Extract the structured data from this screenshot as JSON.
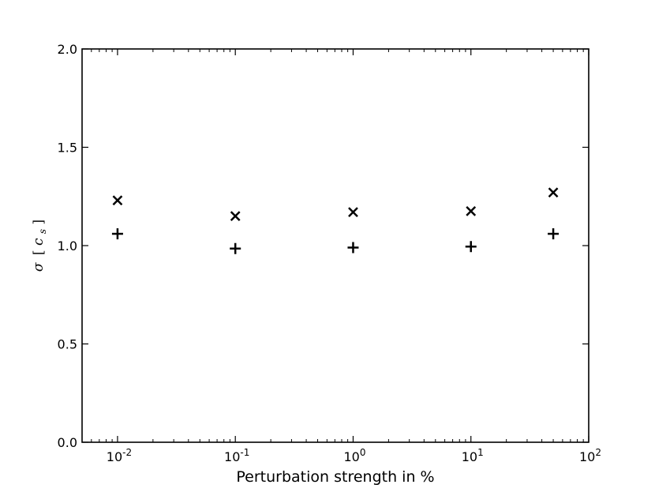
{
  "chart_data": {
    "type": "scatter",
    "title": "",
    "xlabel": "Perturbation strength in %",
    "ylabel": "σ [c_s]",
    "ylabel_parts": {
      "symbol": "σ",
      "open": "[",
      "unit": "c",
      "sub": "s",
      "close": "]"
    },
    "x_scale": "log",
    "xlim": [
      0.005,
      100
    ],
    "ylim": [
      0.0,
      2.0
    ],
    "x_ticks": [
      {
        "value": 0.01,
        "base": "10",
        "exp": "-2"
      },
      {
        "value": 0.1,
        "base": "10",
        "exp": "-1"
      },
      {
        "value": 1,
        "base": "10",
        "exp": "0"
      },
      {
        "value": 10,
        "base": "10",
        "exp": "1"
      },
      {
        "value": 100,
        "base": "10",
        "exp": "2"
      }
    ],
    "y_ticks": [
      {
        "value": 0.0,
        "label": "0.0"
      },
      {
        "value": 0.5,
        "label": "0.5"
      },
      {
        "value": 1.0,
        "label": "1.0"
      },
      {
        "value": 1.5,
        "label": "1.5"
      },
      {
        "value": 2.0,
        "label": "2.0"
      }
    ],
    "grid": false,
    "series": [
      {
        "marker": "x",
        "x": [
          0.01,
          0.1,
          1,
          10,
          50
        ],
        "y": [
          1.23,
          1.15,
          1.17,
          1.175,
          1.27
        ]
      },
      {
        "marker": "+",
        "x": [
          0.01,
          0.1,
          1,
          10,
          50
        ],
        "y": [
          1.06,
          0.985,
          0.99,
          0.995,
          1.06
        ]
      }
    ]
  }
}
